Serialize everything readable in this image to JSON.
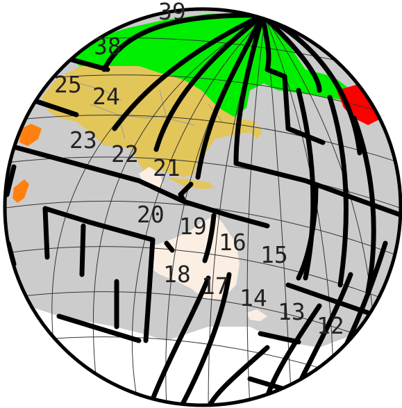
{
  "map": {
    "projection": "orthographic",
    "colors": {
      "ocean": "#cccccc",
      "antarctica": "#ffffff",
      "russia": "#00ee00",
      "russia_far_east": "#ff0000",
      "asia": "#e3c65a",
      "oceania_land": "#fbefe4",
      "africa": "#ff8010",
      "outline": "#000000"
    },
    "zones": [
      {
        "id": "12",
        "label": "12"
      },
      {
        "id": "13",
        "label": "13"
      },
      {
        "id": "14",
        "label": "14"
      },
      {
        "id": "15",
        "label": "15"
      },
      {
        "id": "16",
        "label": "16"
      },
      {
        "id": "17",
        "label": "17"
      },
      {
        "id": "18",
        "label": "18"
      },
      {
        "id": "19",
        "label": "19"
      },
      {
        "id": "20",
        "label": "20"
      },
      {
        "id": "21",
        "label": "21"
      },
      {
        "id": "22",
        "label": "22"
      },
      {
        "id": "23",
        "label": "23"
      },
      {
        "id": "24",
        "label": "24"
      },
      {
        "id": "25",
        "label": "25"
      },
      {
        "id": "38",
        "label": "38"
      },
      {
        "id": "39",
        "label": "39"
      }
    ]
  }
}
